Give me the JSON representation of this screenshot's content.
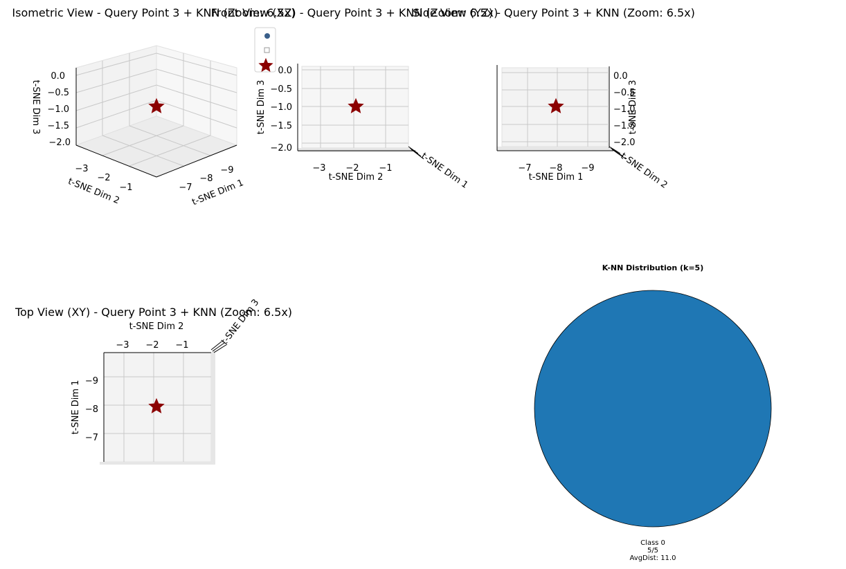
{
  "figure": {
    "title_iso": "Isometric View - Query Point 3 + KNN (Zoom: 6.5x)",
    "title_front": "Front View (XZ) - Query Point 3 + KNN (Zoom: 6.5x)",
    "title_side": "Side View (YZ) - Query Point 3 + KNN (Zoom: 6.5x)",
    "title_top": "Top View (XY) - Query Point 3 + KNN (Zoom: 6.5x)",
    "title_pie": "K-NN Distribution (k=5)"
  },
  "colors": {
    "pane": "#f2f2f2",
    "grid": "#c8c8c8",
    "point": "#3a5f8a",
    "query_star": "#8b0000",
    "pie_class0": "#1f77b4"
  },
  "chart_data": [
    {
      "type": "scatter",
      "panel": "isometric",
      "title": "Isometric View - Query Point 3 + KNN (Zoom: 6.5x)",
      "xlabel": "t-SNE Dim 1",
      "ylabel": "t-SNE Dim 2",
      "zlabel": "t-SNE Dim 3",
      "x_ticks": [
        "−9",
        "−8",
        "−7"
      ],
      "y_ticks": [
        "−3",
        "−2",
        "−1"
      ],
      "z_ticks": [
        "0.0",
        "−0.5",
        "−1.0",
        "−1.5",
        "−2.0"
      ],
      "points": [
        {
          "x": -8.0,
          "y": -2.0,
          "z": -1.0
        }
      ],
      "query_point": {
        "x": -8.0,
        "y": -2.0,
        "z": -1.0
      },
      "legend": "top-right"
    },
    {
      "type": "scatter",
      "panel": "front",
      "title": "Front View (XZ) - Query Point 3 + KNN (Zoom: 6.5x)",
      "xlabel": "t-SNE Dim 2",
      "ylabel": "t-SNE Dim 3",
      "depth_label": "t-SNE Dim 1",
      "x_ticks": [
        "−3",
        "−2",
        "−1"
      ],
      "y_ticks": [
        "0.0",
        "−0.5",
        "−1.0",
        "−1.5",
        "−2.0"
      ],
      "points": [
        {
          "x": -2.0,
          "y": -1.0
        }
      ],
      "query_point": {
        "x": -2.0,
        "y": -1.0
      }
    },
    {
      "type": "scatter",
      "panel": "side",
      "title": "Side View (YZ) - Query Point 3 + KNN (Zoom: 6.5x)",
      "xlabel": "t-SNE Dim 1",
      "ylabel": "t-SNE Dim 3",
      "depth_label": "t-SNE Dim 2",
      "x_ticks": [
        "−7",
        "−8",
        "−9"
      ],
      "y_ticks": [
        "0.0",
        "−0.5",
        "−1.0",
        "−1.5",
        "−2.0"
      ],
      "points": [
        {
          "x": -8.0,
          "y": -1.0
        }
      ],
      "query_point": {
        "x": -8.0,
        "y": -1.0
      }
    },
    {
      "type": "scatter",
      "panel": "top",
      "title": "Top View (XY) - Query Point 3 + KNN (Zoom: 6.5x)",
      "xlabel": "t-SNE Dim 2",
      "ylabel": "t-SNE Dim 1",
      "depth_label": "t-SNE Dim 3",
      "x_ticks": [
        "−3",
        "−2",
        "−1"
      ],
      "y_ticks": [
        "−9",
        "−8",
        "−7"
      ],
      "points": [
        {
          "x": -2.0,
          "y": -8.0
        }
      ],
      "query_point": {
        "x": -2.0,
        "y": -8.0
      }
    },
    {
      "type": "pie",
      "panel": "knn-distribution",
      "title": "K-NN Distribution (k=5)",
      "slices": [
        {
          "label": "Class 0",
          "count": "5/5",
          "avg_dist": "AvgDist: 11.0",
          "value": 5
        }
      ]
    }
  ]
}
